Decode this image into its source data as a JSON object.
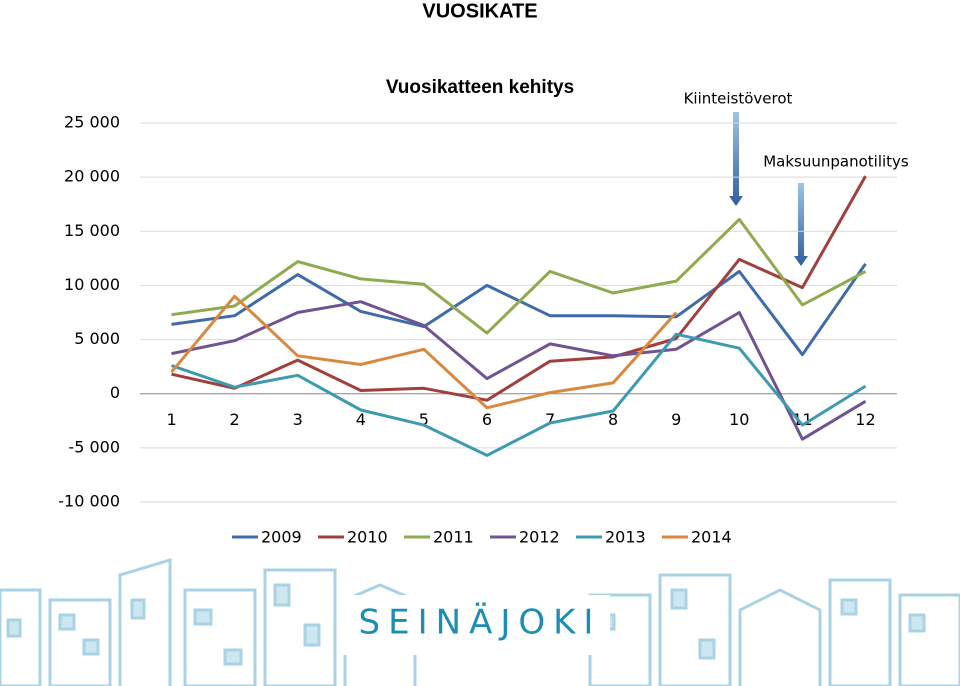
{
  "slide_title": "VUOSIKATE",
  "logo": "SEINÄJOKI",
  "chart_data": {
    "type": "line",
    "title": "Vuosikatteen kehitys",
    "annotations": [
      "Kiinteistöverot",
      "Maksuunpanotilitys"
    ],
    "categories": [
      "1",
      "2",
      "3",
      "4",
      "5",
      "6",
      "7",
      "8",
      "9",
      "10",
      "11",
      "12"
    ],
    "series": [
      {
        "name": "2009",
        "color": "#3f6ba8",
        "values": [
          6400,
          7200,
          11000,
          7600,
          6200,
          10000,
          7200,
          7200,
          7100,
          11300,
          3600,
          12000
        ]
      },
      {
        "name": "2010",
        "color": "#a0403d",
        "values": [
          1800,
          500,
          3100,
          300,
          500,
          -600,
          3000,
          3400,
          5100,
          12400,
          9800,
          20100
        ]
      },
      {
        "name": "2011",
        "color": "#8faa4f",
        "values": [
          7300,
          8100,
          12200,
          10600,
          10100,
          5600,
          11300,
          9300,
          10400,
          16100,
          8200,
          11300
        ]
      },
      {
        "name": "2012",
        "color": "#6f5393",
        "values": [
          3700,
          4900,
          7500,
          8500,
          6300,
          1400,
          4600,
          3500,
          4100,
          7500,
          -4200,
          -700
        ]
      },
      {
        "name": "2013",
        "color": "#3e9aaf",
        "values": [
          2600,
          600,
          1700,
          -1500,
          -2900,
          -5700,
          -2700,
          -1600,
          5500,
          4200,
          -2900,
          700
        ]
      },
      {
        "name": "2014",
        "color": "#d8893f",
        "values": [
          2000,
          9000,
          3500,
          2700,
          4100,
          -1300,
          100,
          1000,
          7500,
          null,
          null,
          null
        ]
      }
    ],
    "ylim": [
      -10000,
      25000
    ],
    "yticks": [
      {
        "value": -10000,
        "label": "-10 000"
      },
      {
        "value": -5000,
        "label": "-5 000"
      },
      0,
      {
        "value": 5000,
        "label": "5 000"
      },
      {
        "value": 10000,
        "label": "10 000"
      },
      {
        "value": 15000,
        "label": "15 000"
      },
      {
        "value": 20000,
        "label": "20 000"
      },
      {
        "value": 25000,
        "label": "25 000"
      }
    ],
    "grid": true,
    "legend": "bottom"
  }
}
